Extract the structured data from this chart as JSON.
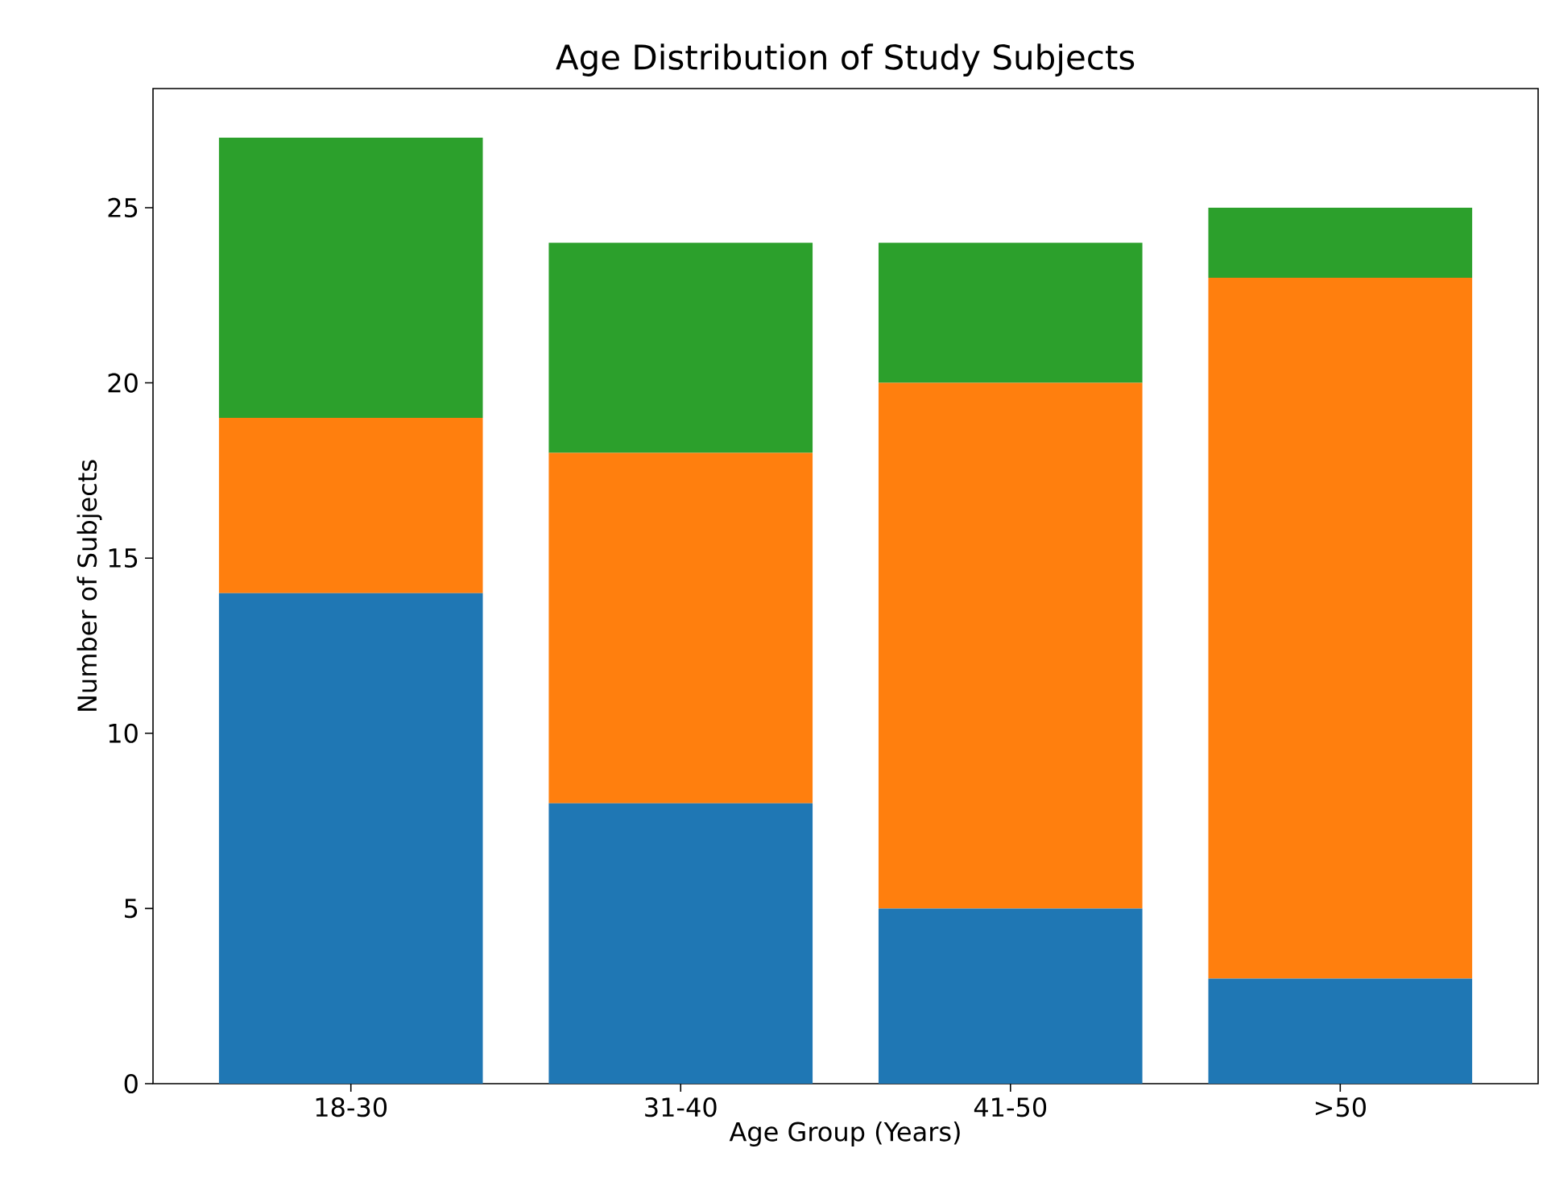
{
  "chart_data": {
    "type": "bar",
    "title": "Age Distribution of Study Subjects",
    "xlabel": "Age Group (Years)",
    "ylabel": "Number of Subjects",
    "categories": [
      "18-30",
      "31-40",
      "41-50",
      ">50"
    ],
    "stacked": true,
    "series": [
      {
        "color": "#1f77b4",
        "values": [
          14,
          8,
          5,
          3
        ]
      },
      {
        "color": "#ff7f0e",
        "values": [
          5,
          10,
          15,
          20
        ]
      },
      {
        "color": "#2ca02c",
        "values": [
          8,
          6,
          4,
          2
        ]
      }
    ],
    "ylim": [
      0,
      28.4
    ],
    "yticks": [
      0,
      5,
      10,
      15,
      20,
      25
    ]
  }
}
